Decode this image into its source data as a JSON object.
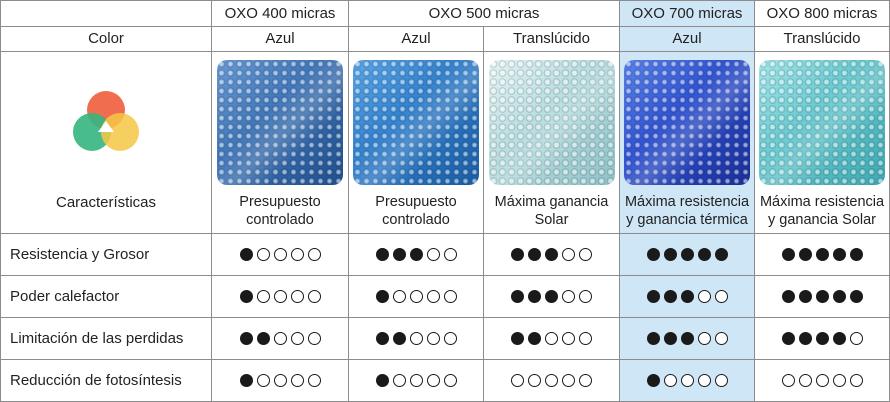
{
  "columns": [
    {
      "product": "OXO 400 micras",
      "color": "Azul",
      "caption": "Presupuesto controlado",
      "swatch": {
        "base": "#3d74b8",
        "light": "#6a9ad4",
        "dark": "#1f4f8f"
      },
      "highlight": false
    },
    {
      "product": "OXO 500 micras",
      "color": "Azul",
      "caption": "Presupuesto controlado",
      "swatch": {
        "base": "#2f7fcd",
        "light": "#5aa6e6",
        "dark": "#1a5ea6"
      },
      "highlight": false
    },
    {
      "product": "",
      "color": "Translúcido",
      "caption": "Máxima ganancia Solar",
      "swatch": {
        "base": "#b7dcdf",
        "light": "#e4f4f4",
        "dark": "#8fc2c8"
      },
      "highlight": false
    },
    {
      "product": "OXO 700 micras",
      "color": "Azul",
      "caption": "Máxima resistencia y ganancia térmica",
      "swatch": {
        "base": "#2c4fd0",
        "light": "#5b83ea",
        "dark": "#1a2f9a"
      },
      "highlight": true
    },
    {
      "product": "OXO 800 micras",
      "color": "Translúcido",
      "caption": "Máxima resistencia y ganancia Solar",
      "swatch": {
        "base": "#66c8cf",
        "light": "#a4e5ea",
        "dark": "#3fa9b3"
      },
      "highlight": false
    }
  ],
  "header": {
    "color_label": "Color",
    "characteristics_label": "Características",
    "group_500_label": "OXO 500 micras"
  },
  "venn_colors": [
    "#ef6547",
    "#35b57e",
    "#f6c745",
    "#f08e4c"
  ],
  "rows": [
    {
      "label": "Resistencia y Grosor",
      "ratings": [
        1,
        3,
        3,
        5,
        5
      ]
    },
    {
      "label": "Poder calefactor",
      "ratings": [
        1,
        1,
        3,
        3,
        5
      ]
    },
    {
      "label": "Limitación de las perdidas",
      "ratings": [
        2,
        2,
        2,
        3,
        4
      ]
    },
    {
      "label": "Reducción de fotosíntesis",
      "ratings": [
        1,
        1,
        0,
        1,
        0
      ]
    }
  ],
  "max_rating": 5
}
